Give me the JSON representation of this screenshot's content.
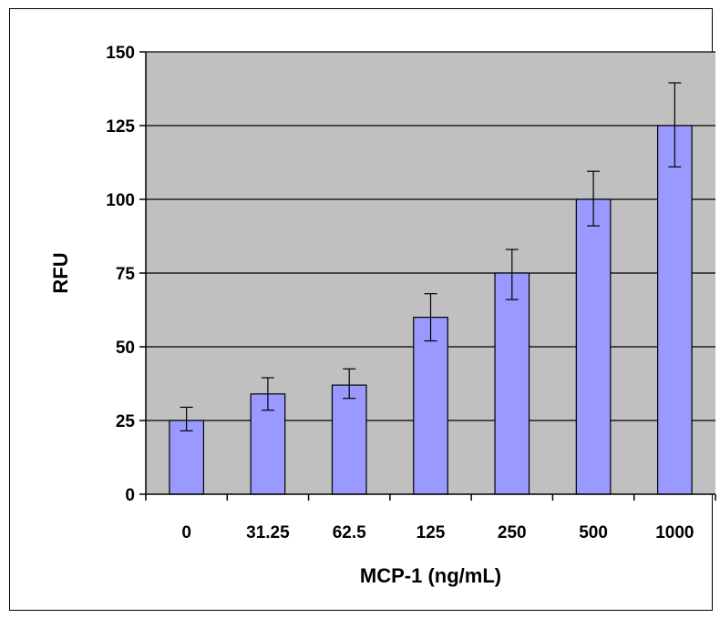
{
  "chart_data": {
    "type": "bar",
    "title": "",
    "xlabel": "MCP-1 (ng/mL)",
    "ylabel": "RFU",
    "categories": [
      "0",
      "31.25",
      "62.5",
      "125",
      "250",
      "500",
      "1000"
    ],
    "series": [
      {
        "values": [
          25,
          34,
          37,
          60,
          75,
          100,
          125
        ],
        "error_low": [
          21.5,
          28.5,
          32.5,
          52,
          66,
          91,
          111
        ],
        "error_high": [
          29.5,
          39.5,
          42.5,
          68,
          83,
          109.5,
          139.5
        ]
      }
    ],
    "ylim": [
      0,
      150
    ],
    "yticks": [
      0,
      25,
      50,
      75,
      100,
      125,
      150
    ],
    "grid": true,
    "colors": {
      "bar_fill": "#9999ff",
      "plot_background": "#c0c0c0",
      "gridline": "#000000",
      "error_bar": "#000000"
    }
  }
}
